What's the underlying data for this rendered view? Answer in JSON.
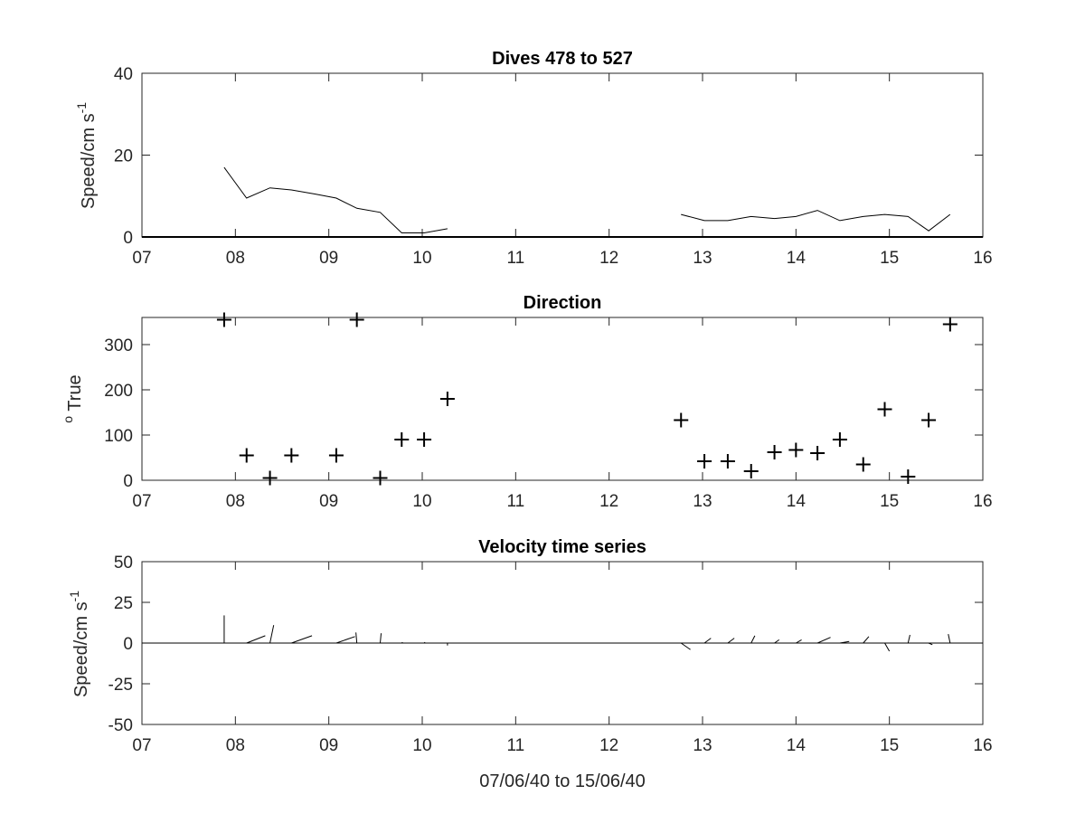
{
  "chart_data": [
    {
      "type": "line",
      "title": "Dives 478 to 527",
      "ylabel": "Speed/cm s",
      "ylabel_superscript": "-1",
      "xlabel": "",
      "xlim": [
        7,
        16
      ],
      "ylim": [
        0,
        40
      ],
      "xticks": [
        "07",
        "08",
        "09",
        "10",
        "11",
        "12",
        "13",
        "14",
        "15",
        "16"
      ],
      "yticks": [
        "0",
        "20",
        "40"
      ],
      "grid": false,
      "series": [
        {
          "segments": [
            [
              [
                7.88,
                17
              ],
              [
                8.12,
                9.5
              ],
              [
                8.37,
                12
              ],
              [
                8.6,
                11.5
              ],
              [
                8.85,
                10.5
              ],
              [
                9.08,
                9.5
              ],
              [
                9.3,
                7
              ],
              [
                9.55,
                6
              ],
              [
                9.78,
                1
              ],
              [
                10.02,
                1
              ],
              [
                10.27,
                2
              ]
            ],
            [
              [
                12.77,
                5.5
              ],
              [
                13.02,
                4
              ],
              [
                13.27,
                4
              ],
              [
                13.52,
                5
              ],
              [
                13.77,
                4.5
              ],
              [
                14.0,
                5
              ],
              [
                14.23,
                6.5
              ],
              [
                14.47,
                4
              ],
              [
                14.72,
                5
              ],
              [
                14.95,
                5.5
              ],
              [
                15.2,
                5
              ],
              [
                15.42,
                1.5
              ],
              [
                15.65,
                5.5
              ]
            ]
          ]
        }
      ]
    },
    {
      "type": "scatter",
      "title": "Direction",
      "ylabel": " True",
      "ylabel_superscript": "o",
      "xlabel": "",
      "xlim": [
        7,
        16
      ],
      "ylim": [
        0,
        360
      ],
      "xticks": [
        "07",
        "08",
        "09",
        "10",
        "11",
        "12",
        "13",
        "14",
        "15",
        "16"
      ],
      "yticks": [
        "0",
        "100",
        "200",
        "300"
      ],
      "grid": false,
      "marker": "+",
      "series": [
        {
          "points": [
            [
              7.88,
              355
            ],
            [
              8.12,
              55
            ],
            [
              8.37,
              5
            ],
            [
              8.6,
              55
            ],
            [
              9.08,
              55
            ],
            [
              9.3,
              355
            ],
            [
              9.55,
              5
            ],
            [
              9.78,
              90
            ],
            [
              10.02,
              90
            ],
            [
              10.27,
              180
            ],
            [
              12.77,
              133
            ],
            [
              13.02,
              42
            ],
            [
              13.27,
              42
            ],
            [
              13.52,
              20
            ],
            [
              13.77,
              62
            ],
            [
              14.0,
              67
            ],
            [
              14.23,
              60
            ],
            [
              14.47,
              90
            ],
            [
              14.72,
              35
            ],
            [
              14.95,
              157
            ],
            [
              15.2,
              8
            ],
            [
              15.42,
              133
            ],
            [
              15.65,
              345
            ]
          ]
        }
      ]
    },
    {
      "type": "line",
      "subtype": "stick",
      "title": "Velocity time series",
      "ylabel": "Speed/cm s",
      "ylabel_superscript": "-1",
      "xlabel": "07/06/40 to 15/06/40",
      "xlim": [
        7,
        16
      ],
      "ylim": [
        -50,
        50
      ],
      "xticks": [
        "07",
        "08",
        "09",
        "10",
        "11",
        "12",
        "13",
        "14",
        "15",
        "16"
      ],
      "yticks": [
        "-50",
        "-25",
        "0",
        "25",
        "50"
      ],
      "grid": false,
      "series": [
        {
          "sticks": [
            {
              "x": 7.88,
              "dx": 0.0,
              "dy": 17
            },
            {
              "x": 8.12,
              "dx": 0.2,
              "dy": 4.5
            },
            {
              "x": 8.37,
              "dx": 0.04,
              "dy": 11
            },
            {
              "x": 8.6,
              "dx": 0.22,
              "dy": 4.5
            },
            {
              "x": 9.08,
              "dx": 0.2,
              "dy": 4
            },
            {
              "x": 9.3,
              "dx": -0.01,
              "dy": 6.5
            },
            {
              "x": 9.55,
              "dx": 0.01,
              "dy": 6
            },
            {
              "x": 9.78,
              "dx": 0.01,
              "dy": 0.5
            },
            {
              "x": 10.02,
              "dx": 0.01,
              "dy": 0.5
            },
            {
              "x": 10.27,
              "dx": 0.0,
              "dy": -1.5
            },
            {
              "x": 12.77,
              "dx": 0.1,
              "dy": -4
            },
            {
              "x": 13.02,
              "dx": 0.07,
              "dy": 3
            },
            {
              "x": 13.27,
              "dx": 0.07,
              "dy": 3
            },
            {
              "x": 13.52,
              "dx": 0.04,
              "dy": 4.5
            },
            {
              "x": 13.77,
              "dx": 0.05,
              "dy": 2
            },
            {
              "x": 14.0,
              "dx": 0.06,
              "dy": 2
            },
            {
              "x": 14.23,
              "dx": 0.14,
              "dy": 3.5
            },
            {
              "x": 14.47,
              "dx": 0.1,
              "dy": 1
            },
            {
              "x": 14.72,
              "dx": 0.06,
              "dy": 4
            },
            {
              "x": 14.95,
              "dx": 0.05,
              "dy": -5
            },
            {
              "x": 15.2,
              "dx": 0.02,
              "dy": 5
            },
            {
              "x": 15.42,
              "dx": 0.04,
              "dy": -1
            },
            {
              "x": 15.65,
              "dx": -0.02,
              "dy": 5.5
            }
          ]
        }
      ]
    }
  ]
}
